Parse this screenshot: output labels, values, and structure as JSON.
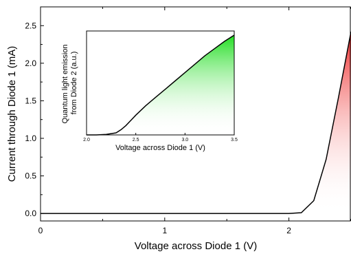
{
  "chart_data": [
    {
      "type": "area",
      "title": "",
      "xlabel": "Voltage across Diode 1 (V)",
      "ylabel": "Current through Diode 1 (mA)",
      "xlim": [
        0,
        2.5
      ],
      "ylim": [
        -0.1,
        2.75
      ],
      "x_ticks": [
        "0",
        "1",
        "2"
      ],
      "x_tick_values": [
        0,
        1,
        2
      ],
      "y_ticks": [
        "0.0",
        "0.5",
        "1.0",
        "1.5",
        "2.0",
        "2.5"
      ],
      "y_tick_values": [
        0,
        0.5,
        1.0,
        1.5,
        2.0,
        2.5
      ],
      "fill_color": "#ee2a2a",
      "x": [
        0,
        0.5,
        1.0,
        1.5,
        1.9,
        2.0,
        2.1,
        2.2,
        2.3,
        2.4,
        2.5
      ],
      "y": [
        0,
        0,
        0,
        0,
        0,
        0,
        0.01,
        0.17,
        0.72,
        1.55,
        2.42
      ]
    },
    {
      "type": "area",
      "title": "",
      "xlabel": "Voltage across Diode 1 (V)",
      "ylabel_lines": [
        "Quantum light emission",
        "from Diode 2 (a.u.)"
      ],
      "xlim": [
        2.0,
        3.5
      ],
      "ylim": [
        0,
        1
      ],
      "x_ticks": [
        "2.0",
        "2.5",
        "3.0",
        "3.5"
      ],
      "x_tick_values": [
        2.0,
        2.5,
        3.0,
        3.5
      ],
      "fill_color": "#22dd22",
      "x": [
        2.0,
        2.1,
        2.2,
        2.3,
        2.35,
        2.4,
        2.45,
        2.5,
        2.6,
        2.7,
        2.8,
        2.9,
        3.0,
        3.1,
        3.2,
        3.3,
        3.4,
        3.5
      ],
      "y": [
        0.0,
        0.0,
        0.005,
        0.02,
        0.05,
        0.09,
        0.14,
        0.19,
        0.28,
        0.36,
        0.44,
        0.52,
        0.6,
        0.68,
        0.76,
        0.83,
        0.9,
        0.96
      ]
    }
  ]
}
